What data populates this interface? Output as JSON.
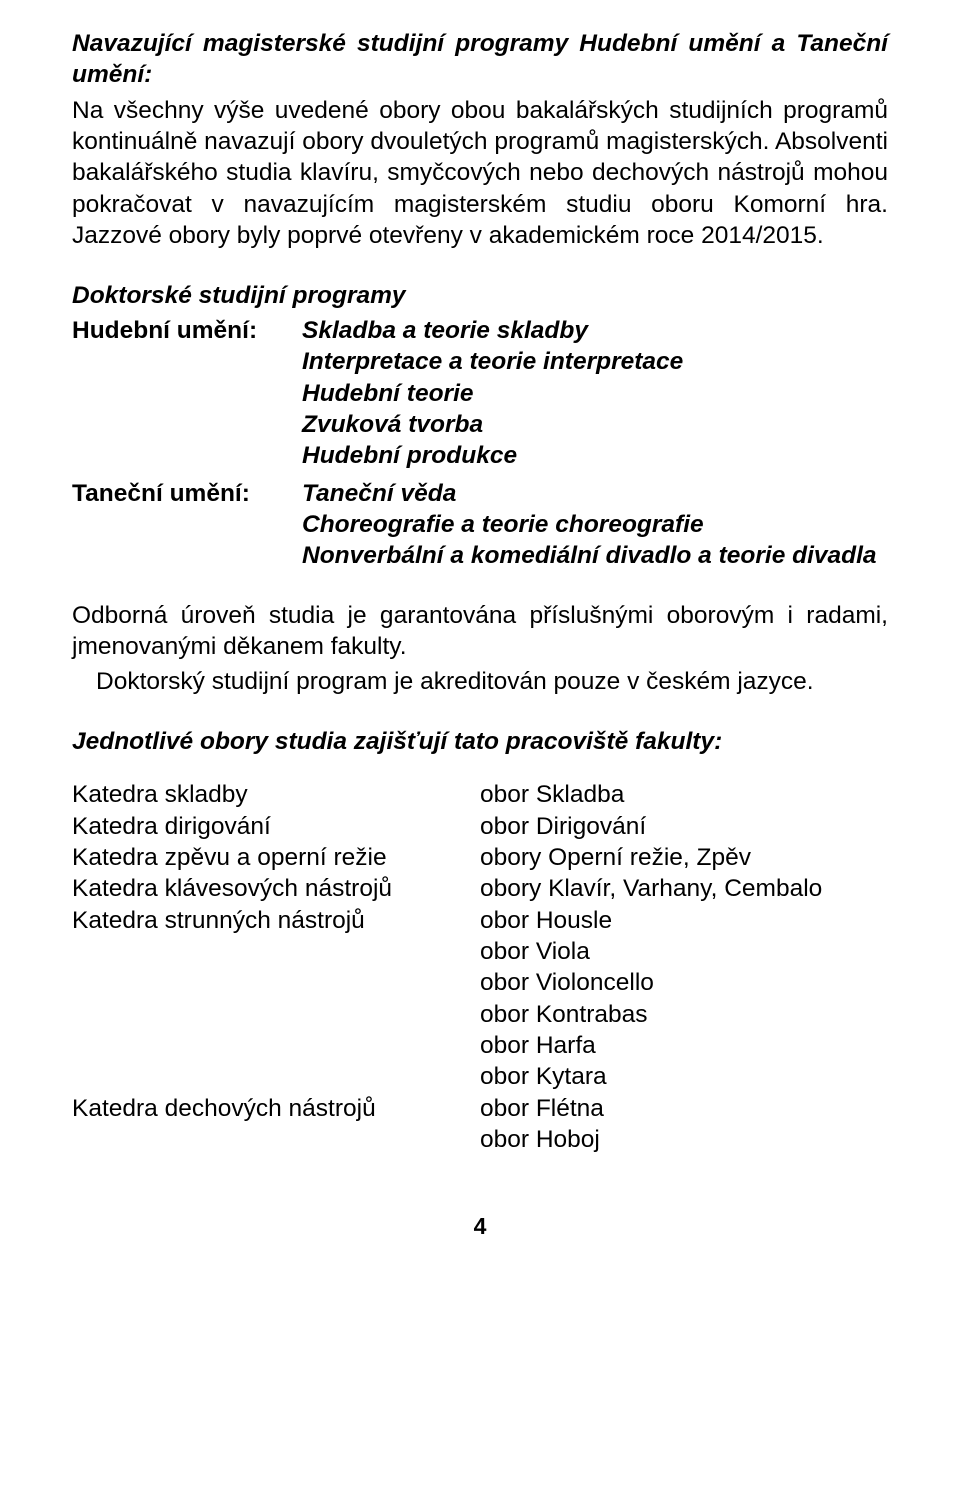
{
  "heading1": "Navazující magisterské studijní programy Hudební umění a Taneční umění:",
  "para1": "Na všechny výše uvedené obory obou bakalářských studijních programů kontinuálně navazují obory dvouletých programů magisterských. Absolventi bakalářského studia klavíru, smyčcových nebo dechových nástrojů mohou pokračovat v navazujícím magisterském studiu oboru Komorní hra. Jazzové obory byly poprvé otevřeny v akademickém roce 2014/2015.",
  "doctoral_heading": "Doktorské studijní programy",
  "prog1_label": "Hudební umění:",
  "prog1_lines": [
    "Skladba a teorie skladby",
    "Interpretace a teorie interpretace",
    "Hudební teorie",
    "Zvuková tvorba",
    "Hudební produkce"
  ],
  "prog2_label": "Taneční umění:",
  "prog2_lines": [
    "Taneční věda",
    "Choreografie a teorie choreografie",
    "Nonverbální a komediální divadlo a teorie divadla"
  ],
  "para2a": "Odborná úroveň studia je garantována příslušnými oborovým i radami, jmenovanými děkanem fakulty.",
  "para2b": "Doktorský studijní program je akreditován pouze v českém jazyce.",
  "dept_heading": "Jednotlivé obory studia zajišťují tato pracoviště fakulty:",
  "dept_left": [
    "Katedra skladby",
    "Katedra dirigování",
    "Katedra zpěvu a operní režie",
    "Katedra klávesových nástrojů",
    "Katedra strunných nástrojů",
    "",
    "",
    "",
    "",
    "",
    "Katedra dechových nástrojů",
    ""
  ],
  "dept_right": [
    "obor Skladba",
    "obor Dirigování",
    "obory Operní režie, Zpěv",
    "obory Klavír, Varhany, Cembalo",
    "obor Housle",
    "obor Viola",
    "obor Violoncello",
    "obor Kontrabas",
    "obor Harfa",
    "obor Kytara",
    "obor Flétna",
    "obor Hoboj"
  ],
  "page_number": "4"
}
